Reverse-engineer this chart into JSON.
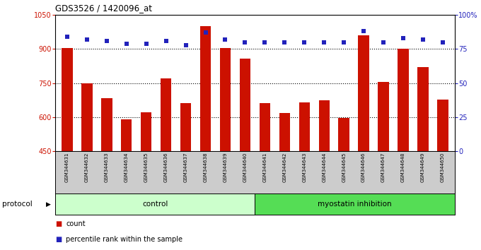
{
  "title": "GDS3526 / 1420096_at",
  "samples": [
    "GSM344631",
    "GSM344632",
    "GSM344633",
    "GSM344634",
    "GSM344635",
    "GSM344636",
    "GSM344637",
    "GSM344638",
    "GSM344639",
    "GSM344640",
    "GSM344641",
    "GSM344642",
    "GSM344643",
    "GSM344644",
    "GSM344645",
    "GSM344646",
    "GSM344647",
    "GSM344648",
    "GSM344649",
    "GSM344650"
  ],
  "counts": [
    905,
    748,
    683,
    592,
    622,
    770,
    662,
    1000,
    905,
    858,
    663,
    617,
    666,
    675,
    597,
    960,
    754,
    900,
    820,
    678
  ],
  "percentiles": [
    84,
    82,
    81,
    79,
    79,
    81,
    78,
    87,
    82,
    80,
    80,
    80,
    80,
    80,
    80,
    88,
    80,
    83,
    82,
    80
  ],
  "bar_color": "#CC1100",
  "dot_color": "#2222BB",
  "ylim_left": [
    450,
    1050
  ],
  "ylim_right": [
    0,
    100
  ],
  "yticks_left": [
    450,
    600,
    750,
    900,
    1050
  ],
  "yticks_right": [
    0,
    25,
    50,
    75,
    100
  ],
  "ytick_labels_right": [
    "0",
    "25",
    "50",
    "75",
    "100%"
  ],
  "control_label": "control",
  "treatment_label": "myostatin inhibition",
  "protocol_label": "protocol",
  "legend_count": "count",
  "legend_percentile": "percentile rank within the sample",
  "control_color": "#CCFFCC",
  "treatment_color": "#55DD55",
  "n_control": 10,
  "n_treatment": 10,
  "bar_width": 0.55,
  "sample_bg_color": "#CCCCCC",
  "plot_bg": "#FFFFFF"
}
